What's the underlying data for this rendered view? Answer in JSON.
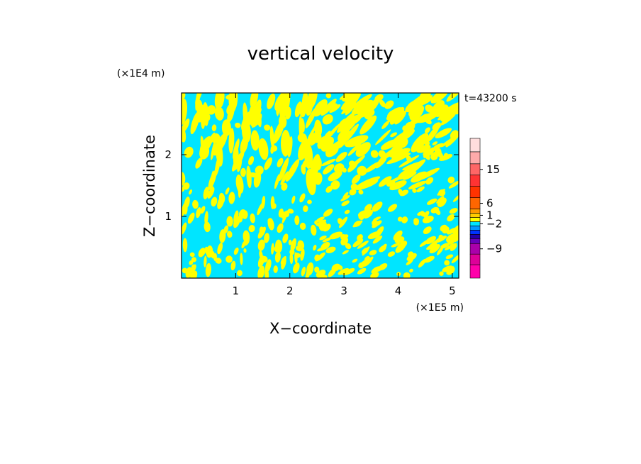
{
  "chart_data": {
    "type": "heatmap",
    "title": "vertical velocity",
    "xlabel": "X−coordinate",
    "ylabel": "Z−coordinate",
    "x_unit": "(×1E5 m)",
    "y_unit": "(×1E4 m)",
    "time_label": "t=43200 s",
    "xlim": [
      0,
      5.12
    ],
    "ylim": [
      0,
      3.0
    ],
    "x_ticks": [
      {
        "value": 1,
        "label": "1"
      },
      {
        "value": 2,
        "label": "2"
      },
      {
        "value": 3,
        "label": "3"
      },
      {
        "value": 4,
        "label": "4"
      },
      {
        "value": 5,
        "label": "5"
      }
    ],
    "y_ticks": [
      {
        "value": 1,
        "label": "1"
      },
      {
        "value": 2,
        "label": "2"
      }
    ],
    "field_colors": {
      "negative": "#00e5ff",
      "positive": "#ffff00"
    },
    "colorbar": {
      "levels": [
        {
          "color": "#ff00aa"
        },
        {
          "color": "#dd0099"
        },
        {
          "color": "#aa00aa"
        },
        {
          "color": "#6600bb"
        },
        {
          "color": "#2200aa"
        },
        {
          "color": "#0033ff"
        },
        {
          "color": "#0099ff"
        },
        {
          "color": "#00e5ff"
        },
        {
          "color": "#ffff00"
        },
        {
          "color": "#ffcc00"
        },
        {
          "color": "#ff9900"
        },
        {
          "color": "#ff6600"
        },
        {
          "color": "#ff3300"
        },
        {
          "color": "#ff3333"
        },
        {
          "color": "#ff6666"
        },
        {
          "color": "#ffaaaa"
        },
        {
          "color": "#ffdddd"
        }
      ],
      "labels": [
        {
          "text": "15",
          "level": 14
        },
        {
          "text": "6",
          "level": 11
        },
        {
          "text": "1",
          "level": 9
        },
        {
          "text": "−2",
          "level": 7
        },
        {
          "text": "−9",
          "level": 2
        }
      ]
    }
  }
}
